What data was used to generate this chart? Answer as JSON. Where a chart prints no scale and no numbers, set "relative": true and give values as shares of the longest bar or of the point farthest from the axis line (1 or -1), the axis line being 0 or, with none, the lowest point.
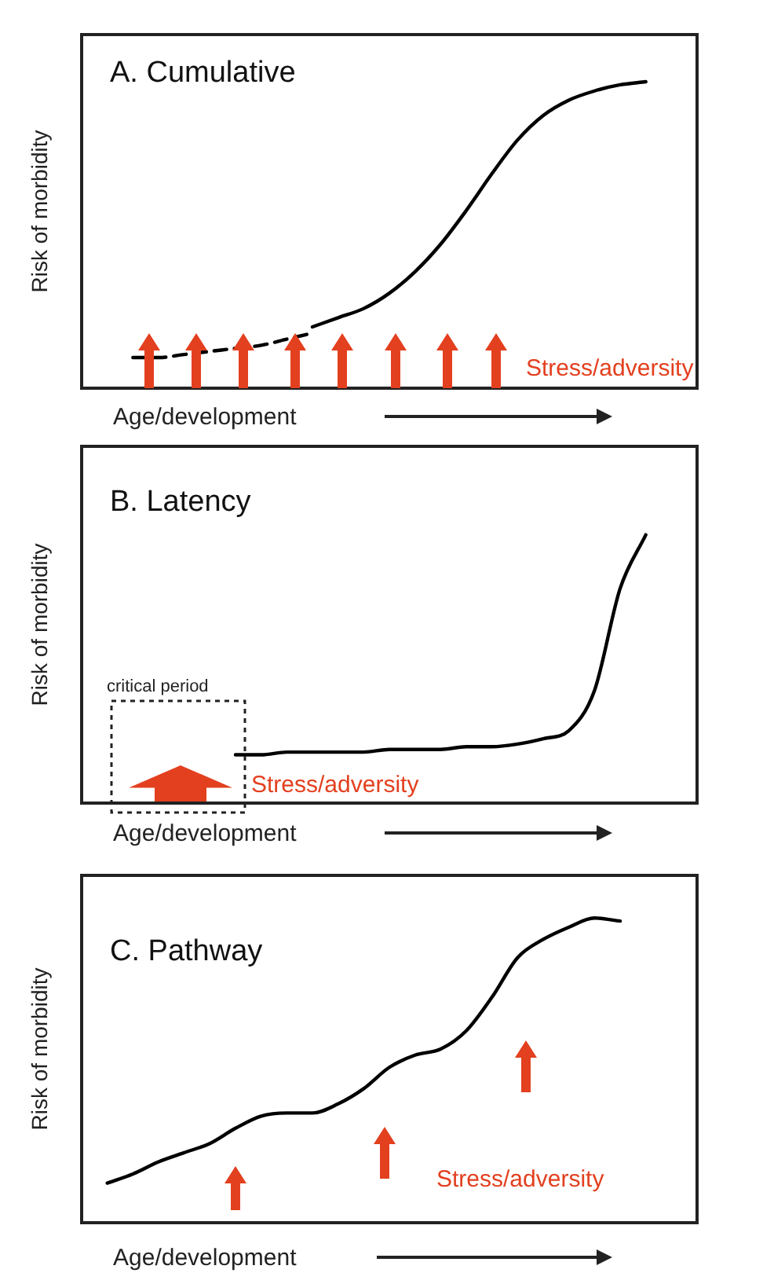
{
  "chart_data": [
    {
      "type": "line",
      "title": "A. Cumulative",
      "xlabel": "Age/development",
      "ylabel": "Risk of morbidity",
      "relative": true,
      "marker": "none",
      "categories": [
        null,
        null,
        null,
        null,
        null,
        null,
        null,
        null,
        null,
        null,
        null,
        null,
        null,
        null,
        null,
        null,
        null,
        null,
        null,
        null,
        null,
        null,
        null,
        null,
        null
      ],
      "series": [
        {
          "color": "#000000",
          "line_style": "dashed",
          "values": [
            null,
            null,
            0.1,
            0.1,
            0.11,
            0.12,
            0.13,
            0.14,
            0.16,
            0.18,
            null,
            null,
            null,
            null,
            null,
            null,
            null,
            null,
            null,
            null,
            null,
            null,
            null,
            null,
            null
          ]
        },
        {
          "color": "#000000",
          "line_style": "solid",
          "values": [
            null,
            null,
            null,
            null,
            null,
            null,
            null,
            null,
            null,
            0.2,
            0.23,
            0.26,
            0.31,
            0.38,
            0.47,
            0.58,
            0.7,
            0.81,
            0.89,
            0.94,
            0.97,
            0.99,
            1,
            null,
            null
          ]
        }
      ],
      "annotations": [
        "Stress/adversity"
      ]
    },
    {
      "type": "line",
      "title": "B. Latency",
      "xlabel": "Age/development",
      "ylabel": "Risk of morbidity",
      "relative": true,
      "marker": "none",
      "categories": [
        null,
        null,
        null,
        null,
        null,
        null,
        null,
        null,
        null,
        null,
        null,
        null,
        null,
        null,
        null,
        null,
        null,
        null,
        null,
        null,
        null,
        null,
        null,
        null,
        null
      ],
      "series": [
        {
          "color": "#000000",
          "line_style": "solid",
          "values": [
            null,
            null,
            null,
            null,
            null,
            null,
            0.18,
            0.18,
            0.19,
            0.19,
            0.19,
            0.19,
            0.2,
            0.2,
            0.2,
            0.21,
            0.21,
            0.22,
            0.24,
            0.27,
            0.42,
            0.8,
            1,
            null,
            null
          ]
        }
      ],
      "annotations": [
        "critical period",
        "Stress/adversity"
      ]
    },
    {
      "type": "line",
      "title": "C. Pathway",
      "xlabel": "Age/development",
      "ylabel": "Risk of morbidity",
      "relative": true,
      "marker": "none",
      "categories": [
        null,
        null,
        null,
        null,
        null,
        null,
        null,
        null,
        null,
        null,
        null,
        null,
        null,
        null,
        null,
        null,
        null,
        null,
        null,
        null,
        null,
        null,
        null,
        null,
        null
      ],
      "series": [
        {
          "color": "#000000",
          "line_style": "solid",
          "values": [
            null,
            0.13,
            0.16,
            0.2,
            0.23,
            0.26,
            0.31,
            0.35,
            0.36,
            0.36,
            0.39,
            0.44,
            0.51,
            0.55,
            0.57,
            0.63,
            0.74,
            0.87,
            0.93,
            0.97,
            1,
            0.99,
            null,
            null,
            null
          ]
        }
      ],
      "annotations": [
        "Stress/adversity"
      ]
    }
  ]
}
